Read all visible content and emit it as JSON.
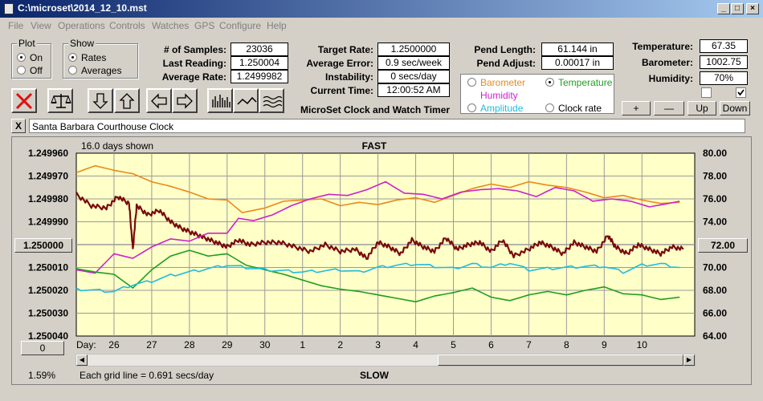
{
  "window": {
    "title": "C:\\microset\\2014_12_10.mst"
  },
  "menu": [
    "File",
    "View",
    "Operations",
    "Controls",
    "Watches",
    "GPS",
    "Configure",
    "Help"
  ],
  "plot_group": {
    "label": "Plot",
    "options": [
      "On",
      "Off"
    ],
    "selected": "On"
  },
  "show_group": {
    "label": "Show",
    "options": [
      "Rates",
      "Averages"
    ],
    "selected": "Rates"
  },
  "readouts": {
    "samples": {
      "label": "# of Samples:",
      "value": "23036"
    },
    "last_reading": {
      "label": "Last Reading:",
      "value": "1.250004"
    },
    "average_rate": {
      "label": "Average Rate:",
      "value": "1.2499982"
    },
    "target_rate": {
      "label": "Target Rate:",
      "value": "1.2500000"
    },
    "average_error": {
      "label": "Average Error:",
      "value": "0.9 sec/week"
    },
    "instability": {
      "label": "Instability:",
      "value": "0 secs/day"
    },
    "current_time": {
      "label": "Current Time:",
      "value": "12:00:52 AM"
    },
    "pend_length": {
      "label": "Pend Length:",
      "value": "61.144 in"
    },
    "pend_adjust": {
      "label": "Pend Adjust:",
      "value": "0.00017 in"
    },
    "temperature": {
      "label": "Temperature:",
      "value": "67.35"
    },
    "barometer": {
      "label": "Barometer:",
      "value": "1002.75"
    },
    "humidity": {
      "label": "Humidity:",
      "value": "70%"
    }
  },
  "app_caption": "MicroSet Clock and Watch Timer",
  "sensor_select": {
    "options": [
      {
        "label": "Barometer",
        "color": "#e88a1a",
        "selected": false
      },
      {
        "label": "Temperature",
        "color": "#1f9e1f",
        "selected": true
      },
      {
        "label": "Humidity",
        "color": "#cc22cc",
        "selected": false
      },
      {
        "label": "Clock rate",
        "color": "#000000",
        "selected": false
      },
      {
        "label": "Amplitude",
        "color": "#22bbdd",
        "selected": false
      }
    ]
  },
  "scale_buttons": [
    "+",
    "—",
    "Up",
    "Down"
  ],
  "description": "Santa Barbara Courthouse Clock",
  "close_label": "X",
  "chart_data": {
    "type": "line",
    "top_label": "FAST",
    "bottom_label": "SLOW",
    "days_shown": "16.0 days shown",
    "grid_note": "Each grid line = 0.691 secs/day",
    "percent": "1.59%",
    "left_value_button": "1.250000",
    "right_value_button": "72.00",
    "zero_button": "0",
    "day_label": "Day:",
    "days": [
      "26",
      "27",
      "28",
      "29",
      "30",
      "1",
      "2",
      "3",
      "4",
      "5",
      "6",
      "7",
      "8",
      "9",
      "10"
    ],
    "left_ticks": [
      "1.249960",
      "1.249970",
      "1.249980",
      "1.249990",
      "",
      "1.250010",
      "1.250020",
      "1.250030",
      "1.250040"
    ],
    "left_range": [
      1.24996,
      1.25004
    ],
    "left_inverted": true,
    "right_ticks": [
      "80.00",
      "78.00",
      "76.00",
      "74.00",
      "",
      "70.00",
      "68.00",
      "66.00",
      "64.00"
    ],
    "right_range": [
      64,
      80
    ],
    "x_range": [
      25.0,
      41.4
    ],
    "series": [
      {
        "name": "Clock rate",
        "color": "#7a0a0a",
        "axis": "left",
        "x": [
          25.0,
          25.4,
          25.8,
          26.1,
          26.4,
          26.5,
          26.6,
          26.9,
          27.2,
          27.5,
          27.8,
          28.1,
          28.4,
          28.7,
          29.0,
          29.3,
          29.6,
          30.0,
          30.4,
          30.8,
          31.2,
          31.6,
          32.0,
          32.4,
          32.7,
          33.0,
          33.3,
          33.6,
          33.9,
          34.2,
          34.5,
          34.8,
          35.1,
          35.4,
          35.7,
          36.0,
          36.3,
          36.6,
          37.0,
          37.3,
          37.6,
          37.9,
          38.2,
          38.5,
          38.8,
          39.1,
          39.3,
          39.6,
          39.9,
          40.2,
          40.5,
          40.8,
          41.1
        ],
        "y": [
          1.249978,
          1.249983,
          1.249984,
          1.249979,
          1.249982,
          1.250002,
          1.249983,
          1.249987,
          1.249985,
          1.24999,
          1.249993,
          1.249995,
          1.249997,
          1.249999,
          1.250001,
          1.249998,
          1.25,
          1.249999,
          1.249999,
          1.250001,
          1.250003,
          1.25,
          1.250003,
          1.250002,
          1.250006,
          1.249999,
          1.250001,
          1.250004,
          1.249998,
          1.250001,
          1.250003,
          1.249997,
          1.250002,
          1.25,
          1.249999,
          1.250003,
          1.249998,
          1.250005,
          1.250002,
          1.249999,
          1.250001,
          1.250004,
          1.249999,
          1.250001,
          1.250003,
          1.249996,
          1.250001,
          1.250004,
          1.25,
          1.250002,
          1.250004,
          1.250001,
          1.250002
        ]
      },
      {
        "name": "Barometer",
        "color": "#e88a1a",
        "axis": "right",
        "x": [
          25.0,
          25.5,
          26.0,
          26.5,
          27.0,
          27.5,
          28.0,
          28.5,
          29.0,
          29.4,
          30.0,
          30.5,
          31.0,
          31.5,
          32.0,
          32.5,
          33.0,
          33.5,
          34.0,
          34.5,
          35.0,
          35.5,
          36.0,
          36.5,
          37.0,
          37.5,
          38.0,
          38.5,
          39.0,
          39.5,
          40.0,
          40.5,
          41.0
        ],
        "y": [
          78.3,
          78.9,
          78.5,
          78.2,
          77.5,
          77.1,
          76.6,
          76.0,
          75.9,
          74.8,
          75.2,
          75.8,
          75.9,
          76.0,
          75.4,
          75.7,
          75.5,
          75.9,
          76.1,
          75.7,
          76.3,
          76.9,
          77.3,
          77.0,
          77.5,
          77.2,
          77.0,
          76.6,
          76.1,
          76.3,
          75.9,
          75.6,
          75.7
        ]
      },
      {
        "name": "Humidity",
        "color": "#cc22cc",
        "axis": "right",
        "x": [
          25.0,
          25.5,
          26.0,
          26.5,
          27.0,
          27.5,
          28.0,
          28.5,
          29.0,
          29.3,
          29.7,
          30.2,
          30.7,
          31.2,
          31.7,
          32.2,
          32.7,
          33.2,
          33.7,
          34.2,
          34.7,
          35.2,
          35.7,
          36.2,
          36.7,
          37.2,
          37.7,
          38.2,
          38.7,
          39.2,
          39.7,
          40.2,
          40.7,
          41.0
        ],
        "y": [
          69.8,
          69.5,
          71.2,
          70.8,
          71.8,
          72.5,
          72.3,
          73.0,
          73.0,
          74.3,
          74.1,
          74.6,
          75.4,
          76.0,
          76.4,
          76.3,
          76.8,
          77.5,
          76.5,
          76.4,
          76.0,
          76.6,
          76.8,
          76.9,
          76.7,
          76.2,
          77.0,
          76.7,
          75.8,
          76.0,
          75.8,
          75.3,
          75.6,
          75.8
        ]
      },
      {
        "name": "Temperature",
        "color": "#1f9e1f",
        "axis": "right",
        "x": [
          25.0,
          25.5,
          26.0,
          26.5,
          27.0,
          27.5,
          28.0,
          28.5,
          29.0,
          29.5,
          30.0,
          30.5,
          31.0,
          31.5,
          32.0,
          32.5,
          33.0,
          33.5,
          34.0,
          34.5,
          35.0,
          35.5,
          36.0,
          36.5,
          37.0,
          37.5,
          38.0,
          38.5,
          39.0,
          39.5,
          40.0,
          40.5,
          41.0
        ],
        "y": [
          69.9,
          69.6,
          69.4,
          68.2,
          69.8,
          71.0,
          71.5,
          71.0,
          71.2,
          70.2,
          69.8,
          69.4,
          68.9,
          68.4,
          68.1,
          67.9,
          67.6,
          67.3,
          67.0,
          67.5,
          67.8,
          68.2,
          67.4,
          67.1,
          67.6,
          67.9,
          67.6,
          68.0,
          68.3,
          67.7,
          67.6,
          67.2,
          67.4
        ]
      },
      {
        "name": "Amplitude",
        "color": "#22bbdd",
        "axis": "right",
        "x": [
          25.0,
          25.5,
          26.0,
          26.5,
          27.0,
          27.5,
          28.0,
          28.5,
          29.0,
          29.5,
          30.0,
          30.5,
          31.0,
          31.5,
          32.0,
          32.5,
          33.0,
          33.5,
          34.0,
          34.5,
          35.0,
          35.5,
          36.0,
          36.5,
          37.0,
          37.5,
          38.0,
          38.5,
          39.0,
          39.5,
          40.0,
          40.5,
          41.0
        ],
        "y": [
          68.1,
          68.0,
          67.9,
          68.5,
          68.8,
          69.3,
          69.6,
          69.9,
          70.2,
          70.0,
          69.8,
          69.7,
          69.6,
          69.7,
          69.8,
          69.6,
          70.0,
          70.2,
          70.3,
          70.1,
          69.9,
          70.3,
          70.0,
          70.4,
          69.8,
          69.9,
          70.0,
          70.1,
          70.1,
          69.6,
          70.2,
          70.3,
          70.0
        ]
      }
    ]
  }
}
